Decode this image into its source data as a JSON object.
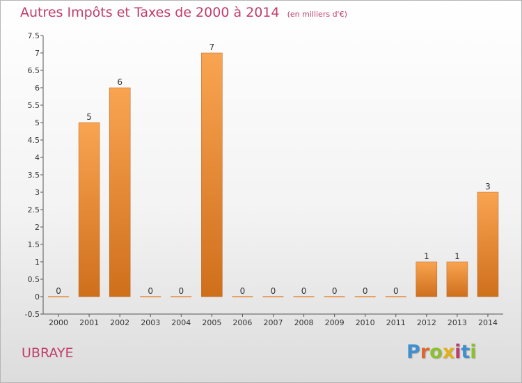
{
  "title": "Autres Impôts et Taxes de 2000 à 2014",
  "subtitle": "(en milliers d'€)",
  "commune": "UBRAYE",
  "logo": {
    "letters": [
      "P",
      "r",
      "o",
      "x",
      "i",
      "t",
      "i"
    ],
    "colors": [
      "#3e8fd0",
      "#e0672a",
      "#8dbf2f",
      "#e3b116",
      "#c13b6a",
      "#3e8fd0",
      "#8dbf2f"
    ]
  },
  "colors": {
    "bar_light": "#f9a451",
    "bar_dark": "#cf6f1c",
    "title": "#c13b6a"
  },
  "chart_data": {
    "type": "bar",
    "title": "Autres Impôts et Taxes de 2000 à 2014",
    "subtitle": "(en milliers d'€)",
    "categories": [
      "2000",
      "2001",
      "2002",
      "2003",
      "2004",
      "2005",
      "2006",
      "2007",
      "2008",
      "2009",
      "2010",
      "2011",
      "2012",
      "2013",
      "2014"
    ],
    "values": [
      0,
      5,
      6,
      0,
      0,
      7,
      0,
      0,
      0,
      0,
      0,
      0,
      1,
      1,
      3
    ],
    "value_labels": [
      "0",
      "5",
      "6",
      "0",
      "0",
      "7",
      "0",
      "0",
      "0",
      "0",
      "0",
      "0",
      "1",
      "1",
      "3"
    ],
    "ylim": [
      -0.5,
      7.5
    ],
    "yticks": [
      "-0.5",
      "0",
      "0.5",
      "1",
      "1.5",
      "2",
      "2.5",
      "3",
      "3.5",
      "4",
      "4.5",
      "5",
      "5.5",
      "6",
      "6.5",
      "7",
      "7.5"
    ],
    "ytick_values": [
      -0.5,
      0,
      0.5,
      1,
      1.5,
      2,
      2.5,
      3,
      3.5,
      4,
      4.5,
      5,
      5.5,
      6,
      6.5,
      7,
      7.5
    ],
    "grid": false,
    "legend": "none"
  }
}
